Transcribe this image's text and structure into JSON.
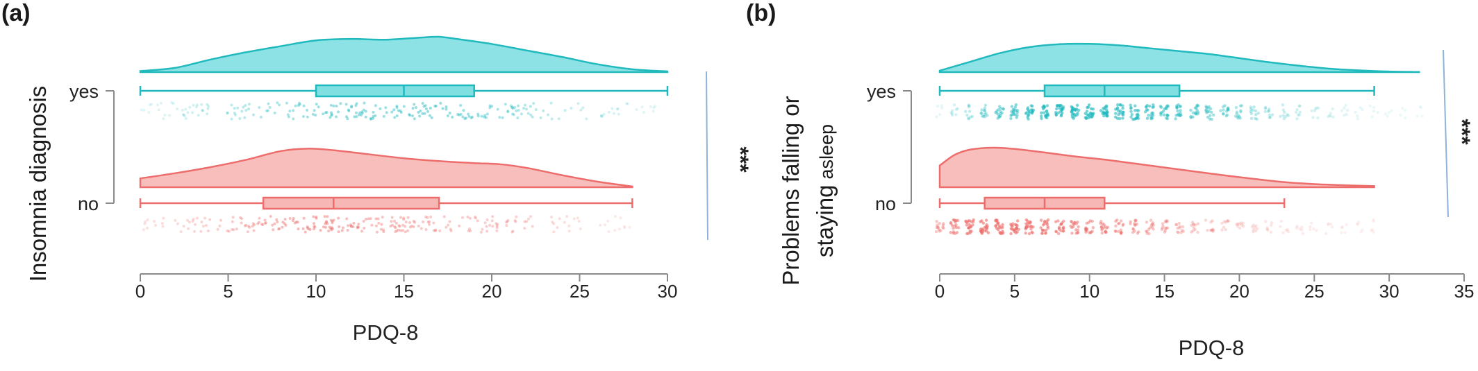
{
  "colors": {
    "yes": "#20b9be",
    "yes_fill": "#7fdfe1",
    "no": "#ec6d6b",
    "no_fill": "#f7b7b4",
    "axis": "#8a8a8a",
    "sig_line": "#8fb3d8"
  },
  "chart_data": [
    {
      "type": "raincloud",
      "panel_label": "(a)",
      "xlabel": "PDQ-8",
      "ylabel_parts": [
        "Insomnia diagnosis"
      ],
      "ticks": [
        0,
        5,
        10,
        15,
        20,
        25,
        30
      ],
      "xlim": [
        0,
        30
      ],
      "significance": "***",
      "jitter": "regular",
      "series": [
        {
          "key": "yes",
          "label": "yes",
          "box": {
            "whisker_low": 0,
            "q1": 10,
            "median": 15,
            "q3": 19,
            "whisker_high": 30
          },
          "density": {
            "x": [
              0,
              2,
              4,
              6,
              8,
              10,
              12,
              14,
              16,
              17,
              18,
              20,
              22,
              24,
              26,
              28,
              30
            ],
            "y": [
              0.03,
              0.12,
              0.35,
              0.55,
              0.72,
              0.88,
              0.92,
              0.9,
              0.96,
              0.98,
              0.92,
              0.78,
              0.6,
              0.42,
              0.22,
              0.08,
              0.02
            ]
          }
        },
        {
          "key": "no",
          "label": "no",
          "box": {
            "whisker_low": 0,
            "q1": 7,
            "median": 11,
            "q3": 17,
            "whisker_high": 28
          },
          "density": {
            "x": [
              0,
              2,
              4,
              6,
              8,
              9.5,
              11,
              13,
              15,
              17,
              19,
              20.5,
              22,
              24,
              26,
              28
            ],
            "y": [
              0.22,
              0.35,
              0.5,
              0.68,
              0.9,
              0.96,
              0.92,
              0.82,
              0.72,
              0.65,
              0.6,
              0.57,
              0.48,
              0.3,
              0.14,
              0.02
            ]
          }
        }
      ]
    },
    {
      "type": "raincloud",
      "panel_label": "(b)",
      "xlabel": "PDQ-8",
      "ylabel_parts": [
        "Problems falling or",
        "staying",
        "asleep"
      ],
      "ticks": [
        0,
        5,
        10,
        15,
        20,
        25,
        30,
        35
      ],
      "xlim": [
        0,
        35
      ],
      "significance": "***",
      "jitter": "integer",
      "series": [
        {
          "key": "yes",
          "label": "yes",
          "box": {
            "whisker_low": 0,
            "q1": 7,
            "median": 11,
            "q3": 16,
            "whisker_high": 29
          },
          "density": {
            "x": [
              0,
              2,
              4,
              6,
              8,
              10,
              12,
              14,
              16,
              18,
              20,
              22,
              24,
              26,
              28,
              30,
              32
            ],
            "y": [
              0.05,
              0.35,
              0.65,
              0.86,
              0.96,
              0.97,
              0.92,
              0.82,
              0.72,
              0.62,
              0.48,
              0.34,
              0.22,
              0.12,
              0.06,
              0.02,
              0.005
            ]
          }
        },
        {
          "key": "no",
          "label": "no",
          "box": {
            "whisker_low": 0,
            "q1": 3,
            "median": 7,
            "q3": 11,
            "whisker_high": 23
          },
          "density": {
            "x": [
              0,
              1,
              2,
              3.5,
              5,
              7,
              9,
              11,
              13,
              15,
              17,
              19,
              21,
              23,
              25,
              27,
              29
            ],
            "y": [
              0.55,
              0.82,
              0.95,
              1.0,
              0.97,
              0.88,
              0.78,
              0.7,
              0.6,
              0.5,
              0.4,
              0.3,
              0.21,
              0.13,
              0.08,
              0.05,
              0.03
            ]
          }
        }
      ]
    }
  ]
}
